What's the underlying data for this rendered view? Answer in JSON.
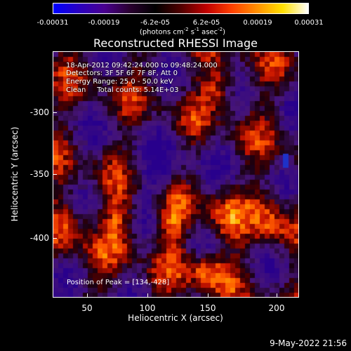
{
  "colorbar": {
    "gradient": [
      "#0000ff",
      "#2a00c0",
      "#4a0090",
      "#2a0030",
      "#000000",
      "#500000",
      "#c00000",
      "#ff4000",
      "#ff9000",
      "#ffe000",
      "#ffffff"
    ],
    "tick_labels": [
      "-0.00031",
      "-0.00019",
      "-6.2e-05",
      "6.2e-05",
      "0.00019",
      "0.00031"
    ],
    "units_prefix": "(photons cm",
    "units_exp1": "-2",
    "units_mid1": " s",
    "units_exp2": "-1",
    "units_mid2": " asec",
    "units_exp3": "-2",
    "units_suffix": ")"
  },
  "title": "Reconstructed RHESSI Image",
  "info": {
    "time_range": "18-Apr-2012 09:42:24.000 to 09:48:24.000",
    "detectors": "Detectors: 3F 5F 6F 7F 8F, Att 0",
    "energy_range": "Energy Range: 25.0 - 50.0 keV",
    "algorithm_counts": "Clean     Total counts: 5.14E+03"
  },
  "peak_position": "Position of Peak = [134,-428]",
  "axes": {
    "xlabel": "Heliocentric X (arcsec)",
    "ylabel": "Heliocentric Y (arcsec)",
    "xticks": [
      "50",
      "100",
      "150",
      "200"
    ],
    "yticks": [
      "-300",
      "-350",
      "-400"
    ]
  },
  "timestamp": "9-May-2022 21:56"
}
